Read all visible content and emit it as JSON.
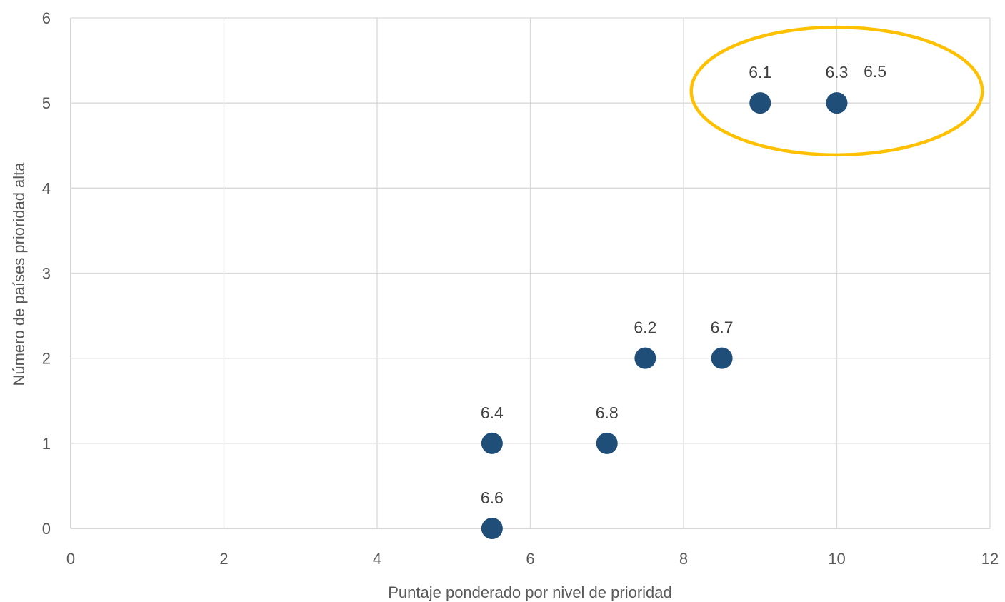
{
  "chart_data": {
    "type": "scatter",
    "title": "",
    "xlabel": "Puntaje ponderado por nivel de prioridad",
    "ylabel": "Número de países prioridad alta",
    "xlim": [
      0,
      12
    ],
    "ylim": [
      0,
      6
    ],
    "x_ticks": [
      "0",
      "2",
      "4",
      "6",
      "8",
      "10",
      "12"
    ],
    "y_ticks": [
      "0",
      "1",
      "2",
      "3",
      "4",
      "5",
      "6"
    ],
    "grid": true,
    "legend": "none",
    "point_color": "#1f4e79",
    "highlight_color": "#ffc000",
    "points": [
      {
        "label": "6.1",
        "x": 9.0,
        "y": 5
      },
      {
        "label": "6.3",
        "x": 10.0,
        "y": 5
      },
      {
        "label": "6.2",
        "x": 7.5,
        "y": 2
      },
      {
        "label": "6.7",
        "x": 8.5,
        "y": 2
      },
      {
        "label": "6.4",
        "x": 5.5,
        "y": 1
      },
      {
        "label": "6.8",
        "x": 7.0,
        "y": 1
      },
      {
        "label": "6.6",
        "x": 5.5,
        "y": 0
      }
    ],
    "annotations": [
      {
        "text": "6.5",
        "x": 10.5,
        "y": 5
      }
    ],
    "highlight": {
      "shape": "ellipse",
      "encloses": [
        "6.1",
        "6.3",
        "6.5"
      ],
      "x_range": [
        8.1,
        11.9
      ],
      "y_range": [
        4.39,
        5.89
      ]
    }
  }
}
